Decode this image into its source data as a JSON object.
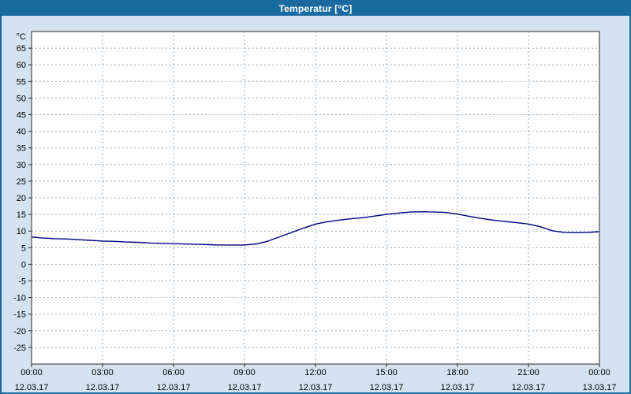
{
  "window": {
    "title": "Temperatur [°C]"
  },
  "colors": {
    "frame": "#1a6a9f",
    "titlebar_bg": "#1a6a9f",
    "titlebar_text": "#ffffff",
    "chart_bg": "#d4e3f2",
    "plot_bg": "#ffffff",
    "grid": "#93abc0",
    "axis": "#2a2a2a",
    "text": "#000000",
    "line": "#000080"
  },
  "chart_data": {
    "type": "line",
    "title": "Temperatur [°C]",
    "xlabel": "",
    "ylabel": "°C",
    "y_unit": "°C",
    "ylim": [
      -30,
      70
    ],
    "y_ticks": [
      65,
      60,
      55,
      50,
      45,
      40,
      35,
      30,
      25,
      20,
      15,
      10,
      5,
      0,
      -5,
      -10,
      -15,
      -20,
      -25
    ],
    "xlim_hours": [
      0,
      24
    ],
    "grid": "dashed",
    "legend": "none",
    "x_ticks": [
      {
        "hour": 0,
        "time": "00:00",
        "date": "12.03.17"
      },
      {
        "hour": 3,
        "time": "03:00",
        "date": "12.03.17"
      },
      {
        "hour": 6,
        "time": "06:00",
        "date": "12.03.17"
      },
      {
        "hour": 9,
        "time": "09:00",
        "date": "12.03.17"
      },
      {
        "hour": 12,
        "time": "12:00",
        "date": "12.03.17"
      },
      {
        "hour": 15,
        "time": "15:00",
        "date": "12.03.17"
      },
      {
        "hour": 18,
        "time": "18:00",
        "date": "12.03.17"
      },
      {
        "hour": 21,
        "time": "21:00",
        "date": "12.03.17"
      },
      {
        "hour": 24,
        "time": "00:00",
        "date": "13.03.17"
      }
    ],
    "series": [
      {
        "name": "Temperatur",
        "color": "#000080",
        "points": [
          [
            0,
            8.2
          ],
          [
            0.5,
            7.9
          ],
          [
            1,
            7.7
          ],
          [
            1.5,
            7.6
          ],
          [
            2,
            7.4
          ],
          [
            2.5,
            7.2
          ],
          [
            3,
            7.0
          ],
          [
            3.5,
            6.9
          ],
          [
            4,
            6.7
          ],
          [
            4.5,
            6.6
          ],
          [
            5,
            6.4
          ],
          [
            5.5,
            6.3
          ],
          [
            6,
            6.2
          ],
          [
            6.5,
            6.1
          ],
          [
            7,
            6.0
          ],
          [
            7.5,
            5.9
          ],
          [
            8,
            5.8
          ],
          [
            8.5,
            5.8
          ],
          [
            9,
            5.8
          ],
          [
            9.5,
            6.1
          ],
          [
            10,
            7.0
          ],
          [
            10.5,
            8.3
          ],
          [
            11,
            9.6
          ],
          [
            11.5,
            10.9
          ],
          [
            12,
            12.1
          ],
          [
            12.5,
            12.8
          ],
          [
            13,
            13.3
          ],
          [
            13.5,
            13.7
          ],
          [
            14,
            14.0
          ],
          [
            14.5,
            14.5
          ],
          [
            15,
            15.0
          ],
          [
            15.5,
            15.4
          ],
          [
            16,
            15.7
          ],
          [
            16.5,
            15.8
          ],
          [
            17,
            15.7
          ],
          [
            17.5,
            15.6
          ],
          [
            18,
            15.1
          ],
          [
            18.5,
            14.4
          ],
          [
            19,
            13.8
          ],
          [
            19.5,
            13.3
          ],
          [
            20,
            12.9
          ],
          [
            20.5,
            12.5
          ],
          [
            21,
            12.1
          ],
          [
            21.5,
            11.3
          ],
          [
            22,
            10.1
          ],
          [
            22.5,
            9.6
          ],
          [
            23,
            9.5
          ],
          [
            23.5,
            9.6
          ],
          [
            24,
            9.8
          ]
        ]
      }
    ]
  }
}
